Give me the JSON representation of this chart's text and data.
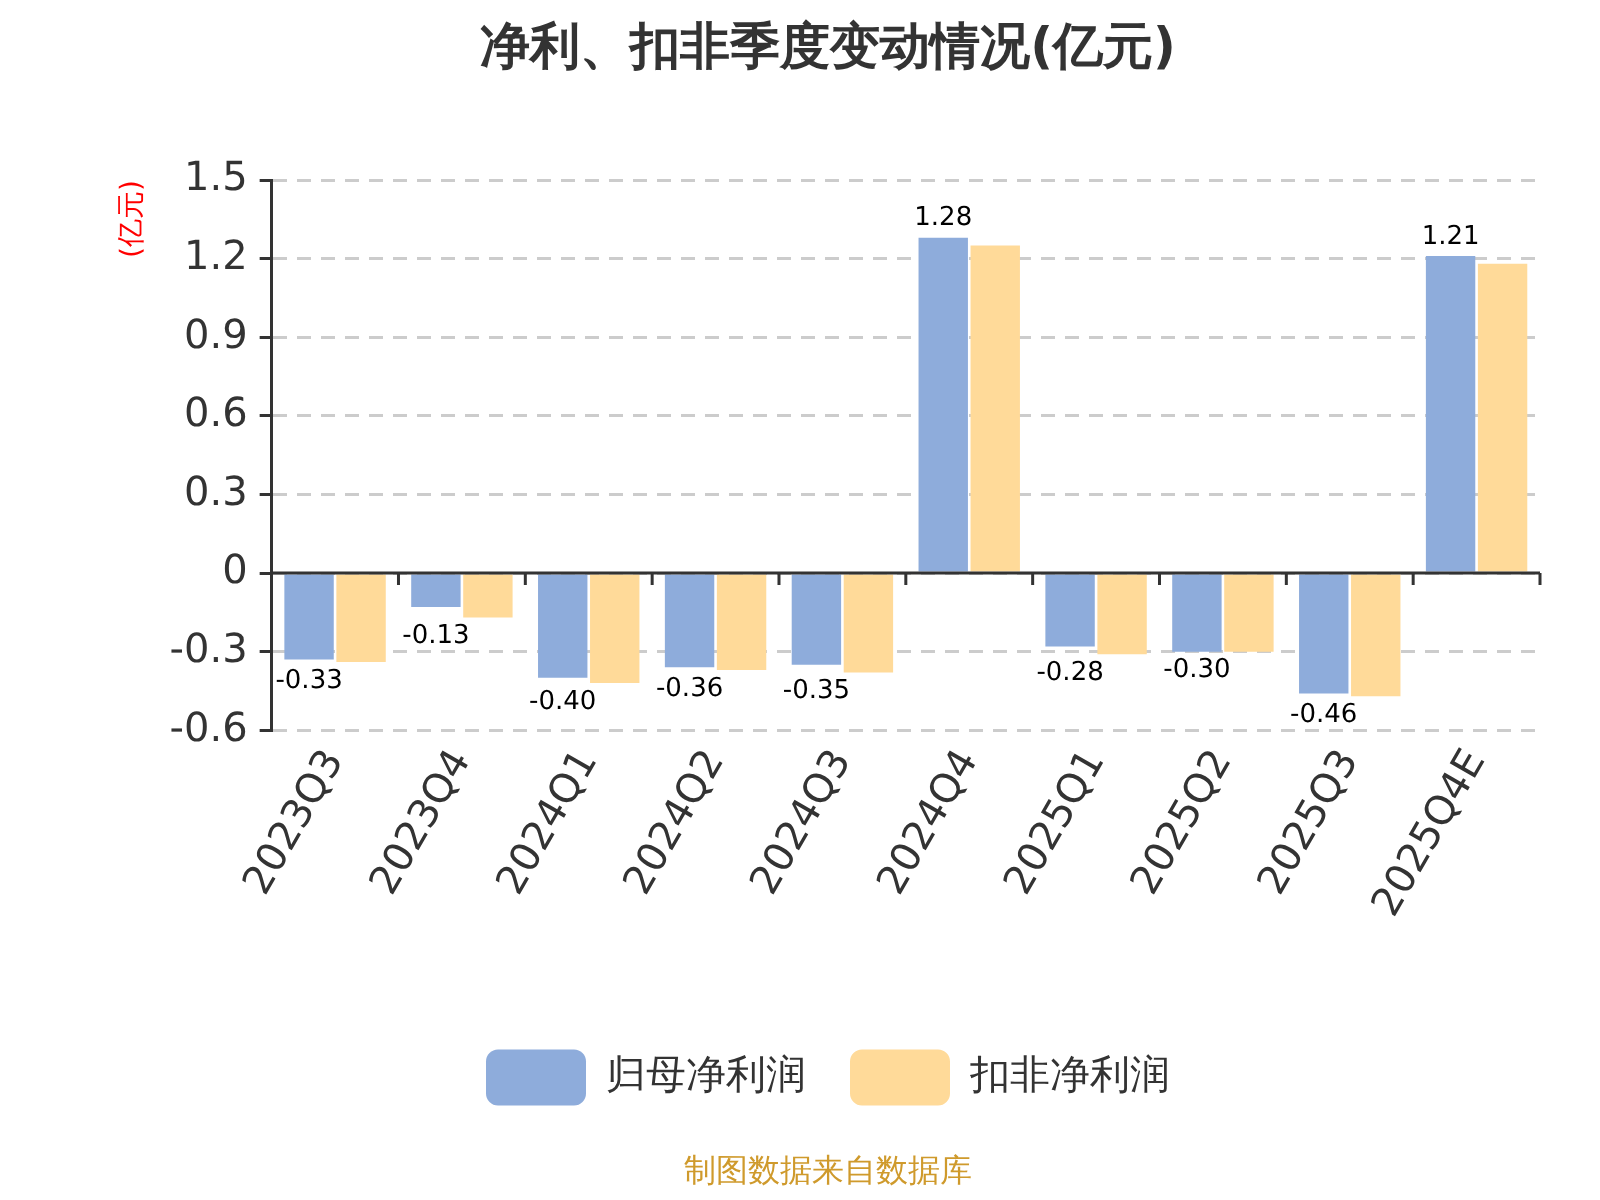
{
  "chart_data": {
    "type": "bar",
    "title": "净利、扣非季度变动情况(亿元)",
    "ylabel": "(亿元)",
    "annotations": [
      "制图数据来自数据库"
    ],
    "categories": [
      "2023Q3",
      "2023Q4",
      "2024Q1",
      "2024Q2",
      "2024Q3",
      "2024Q4",
      "2025Q1",
      "2025Q2",
      "2025Q3",
      "2025Q4E"
    ],
    "series": [
      {
        "name": "归母净利润",
        "color": "#8eacdb",
        "values": [
          -0.33,
          -0.13,
          -0.4,
          -0.36,
          -0.35,
          1.28,
          -0.28,
          -0.3,
          -0.46,
          1.21
        ],
        "value_labels": [
          "-0.33",
          "-0.13",
          "-0.40",
          "-0.36",
          "-0.35",
          "1.28",
          "-0.28",
          "-0.30",
          "-0.46",
          "1.21"
        ]
      },
      {
        "name": "扣非净利润",
        "color": "#ffda99",
        "values": [
          -0.34,
          -0.17,
          -0.42,
          -0.37,
          -0.38,
          1.25,
          -0.31,
          -0.3,
          -0.47,
          1.18
        ]
      }
    ],
    "ylim": [
      -0.6,
      1.5
    ],
    "yticks": [
      -0.6,
      -0.3,
      0,
      0.3,
      0.6,
      0.9,
      1.2,
      1.5
    ],
    "grid": "y",
    "legend": "bottom"
  }
}
